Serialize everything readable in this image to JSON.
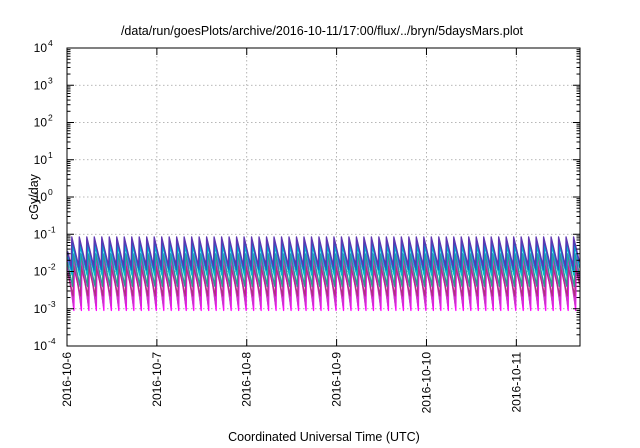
{
  "chart_data": {
    "type": "line",
    "title": "/data/run/goesPlots/archive/2016-10-11/17:00/flux/../bryn/5daysMars.plot",
    "xlabel": "Coordinated Universal Time (UTC)",
    "ylabel": "cGy/day",
    "yscale": "log",
    "ylim": [
      0.0001,
      10000
    ],
    "yticks": [
      {
        "base": "10",
        "exp": "-4",
        "value": 0.0001
      },
      {
        "base": "10",
        "exp": "-3",
        "value": 0.001
      },
      {
        "base": "10",
        "exp": "-2",
        "value": 0.01
      },
      {
        "base": "10",
        "exp": "-1",
        "value": 0.1
      },
      {
        "base": "10",
        "exp": "0",
        "value": 1
      },
      {
        "base": "10",
        "exp": "1",
        "value": 10
      },
      {
        "base": "10",
        "exp": "2",
        "value": 100
      },
      {
        "base": "10",
        "exp": "3",
        "value": 1000
      },
      {
        "base": "10",
        "exp": "4",
        "value": 10000
      }
    ],
    "xlim": [
      "2016-10-06T00:00",
      "2016-10-11T17:00"
    ],
    "xticks": [
      "2016-10-6",
      "2016-10-7",
      "2016-10-8",
      "2016-10-9",
      "2016-10-10",
      "2016-10-11"
    ],
    "grid": true,
    "legend": "none",
    "period_hours": 2,
    "series": [
      {
        "color": "#ff00ff",
        "peak": 0.032,
        "trough": 0.0009
      },
      {
        "color": "#cc33cc",
        "peak": 0.022,
        "trough": 0.0012
      },
      {
        "color": "#b03080",
        "peak": 0.014,
        "trough": 0.0022
      },
      {
        "color": "#2a9d8f",
        "peak": 0.03,
        "trough": 0.004
      },
      {
        "color": "#00bcd4",
        "peak": 0.05,
        "trough": 0.008
      },
      {
        "color": "#1565c0",
        "peak": 0.07,
        "trough": 0.011
      },
      {
        "color": "#5e35b1",
        "peak": 0.085,
        "trough": 0.014
      }
    ]
  }
}
